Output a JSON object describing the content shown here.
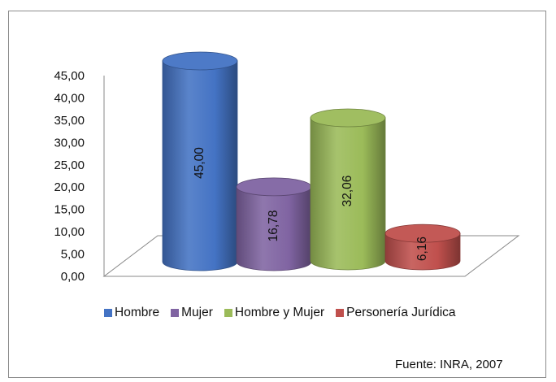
{
  "chart_data": {
    "type": "bar",
    "style": "3d-cylinder",
    "categories": [
      "Hombre",
      "Mujer",
      "Hombre y Mujer",
      "Personería Jurídica"
    ],
    "values": [
      45.0,
      16.78,
      32.06,
      6.16
    ],
    "value_labels": [
      "45,00",
      "16,78",
      "32,06",
      "6,16"
    ],
    "colors": [
      "#4473c4",
      "#8064a2",
      "#9bbb59",
      "#c0504d"
    ],
    "yticks": [
      "0,00",
      "5,00",
      "10,00",
      "15,00",
      "20,00",
      "25,00",
      "30,00",
      "35,00",
      "40,00",
      "45,00"
    ],
    "ylim": [
      0,
      45
    ],
    "grid": false,
    "legend_position": "bottom"
  },
  "source_text": "Fuente: INRA, 2007"
}
